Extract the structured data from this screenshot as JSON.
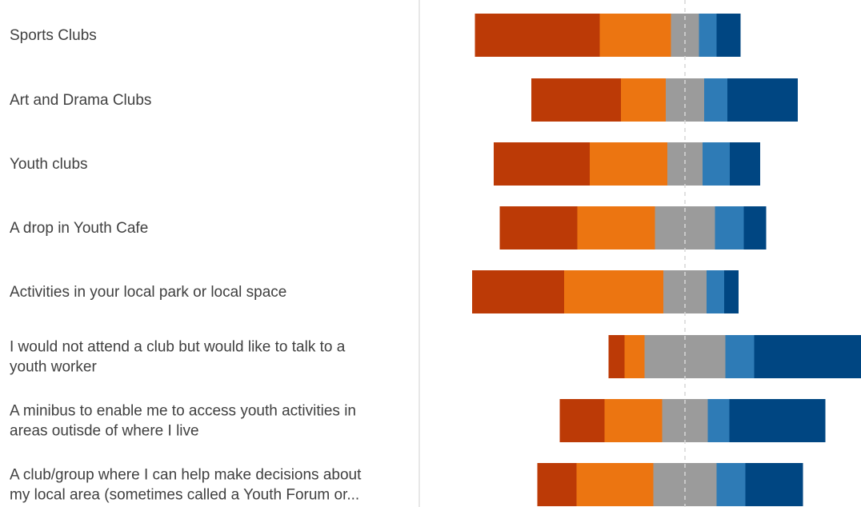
{
  "chart_data": {
    "type": "bar",
    "orientation": "horizontal",
    "stacked": "diverging",
    "categories": [
      [
        "Sports Clubs"
      ],
      [
        "Art and Drama Clubs"
      ],
      [
        "Youth clubs"
      ],
      [
        "A drop in Youth Cafe"
      ],
      [
        "Activities in your local park or local space"
      ],
      [
        "I would not attend a club but would like to talk to a",
        "youth worker"
      ],
      [
        "A minibus to enable me to access  youth activities in",
        "areas outisde of where I live"
      ],
      [
        "A club/group where I can help make decisions about",
        "my local area (sometimes called a Youth Forum or..."
      ]
    ],
    "series": [
      {
        "color": "#bc3a06",
        "values": [
          0.2889,
          0.2074,
          0.2222,
          0.1796,
          0.213,
          0.037,
          0.1037,
          0.0907
        ]
      },
      {
        "color": "#ec7511",
        "values": [
          0.1648,
          0.1037,
          0.1796,
          0.1796,
          0.2296,
          0.0463,
          0.1333,
          0.1778
        ]
      },
      {
        "color": "#9b9b9b",
        "values": [
          0.0648,
          0.0889,
          0.0815,
          0.1389,
          0.1,
          0.187,
          0.1056,
          0.1463
        ]
      },
      {
        "color": "#2e7bb6",
        "values": [
          0.0407,
          0.0537,
          0.063,
          0.0667,
          0.0407,
          0.0667,
          0.05,
          0.0667
        ]
      },
      {
        "color": "#004682",
        "values": [
          0.0556,
          0.163,
          0.0704,
          0.0519,
          0.0333,
          0.2481,
          0.2222,
          0.1333
        ]
      }
    ],
    "center_line": "dashed",
    "legend": "none"
  }
}
